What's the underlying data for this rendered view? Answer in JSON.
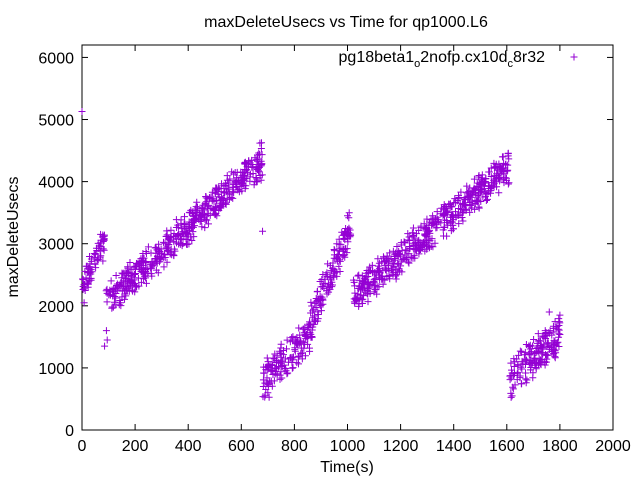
{
  "chart_data": {
    "type": "scatter",
    "title": "maxDeleteUsecs vs Time for qp1000.L6",
    "xlabel": "Time(s)",
    "ylabel": "maxDeleteUsecs",
    "xlim": [
      0,
      2000
    ],
    "ylim": [
      0,
      6200
    ],
    "xticks": [
      0,
      200,
      400,
      600,
      800,
      1000,
      1200,
      1400,
      1600,
      1800,
      2000
    ],
    "yticks": [
      0,
      1000,
      2000,
      3000,
      4000,
      5000,
      6000
    ],
    "xtick_labels": [
      "0",
      "200",
      "400",
      "600",
      "800",
      "1000",
      "1200",
      "1400",
      "1600",
      "1800",
      "2000"
    ],
    "ytick_labels": [
      "0",
      "1000",
      "2000",
      "3000",
      "4000",
      "5000",
      "6000"
    ],
    "grid": false,
    "legend_position": "top-right",
    "marker": "plus",
    "color": "#9400d3",
    "series": [
      {
        "name": "pg18beta1_o2nofp.cx10d_c8r32",
        "name_display": {
          "base": "pg18beta1",
          "sub1": "o",
          "mid": "2nofp.cx10d",
          "sub2": "c",
          "tail": "8r32"
        },
        "segments": [
          {
            "x_start": 0,
            "x_end": 85,
            "y_start": 2350,
            "y_end": 3000,
            "spread": 400,
            "count": 70
          },
          {
            "x_start": 90,
            "x_end": 680,
            "y_start": 2050,
            "y_end": 4350,
            "spread": 450,
            "count": 520
          },
          {
            "x_start": 680,
            "x_end": 860,
            "y_start": 750,
            "y_end": 1550,
            "spread": 500,
            "count": 150
          },
          {
            "x_start": 860,
            "x_end": 1015,
            "y_start": 1700,
            "y_end": 3300,
            "spread": 500,
            "count": 140
          },
          {
            "x_start": 1020,
            "x_end": 1610,
            "y_start": 2150,
            "y_end": 4250,
            "spread": 450,
            "count": 520
          },
          {
            "x_start": 1610,
            "x_end": 1800,
            "y_start": 800,
            "y_end": 1550,
            "spread": 500,
            "count": 170
          }
        ],
        "points": [
          {
            "x": 0,
            "y": 5130
          },
          {
            "x": 8,
            "y": 2050
          },
          {
            "x": 70,
            "y": 3150
          },
          {
            "x": 85,
            "y": 1350
          },
          {
            "x": 95,
            "y": 1450
          },
          {
            "x": 92,
            "y": 1600
          },
          {
            "x": 670,
            "y": 4620
          },
          {
            "x": 680,
            "y": 3200
          },
          {
            "x": 700,
            "y": 600
          },
          {
            "x": 1000,
            "y": 3450
          },
          {
            "x": 1605,
            "y": 4450
          },
          {
            "x": 1620,
            "y": 550
          },
          {
            "x": 1760,
            "y": 1900
          },
          {
            "x": 1800,
            "y": 1850
          }
        ]
      }
    ]
  }
}
